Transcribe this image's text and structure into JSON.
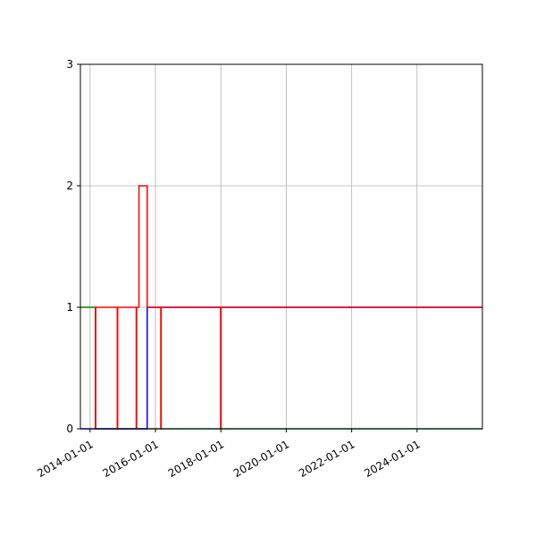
{
  "chart_data": {
    "type": "line",
    "step": "post",
    "title": "",
    "xlabel": "",
    "ylabel": "",
    "x_axis_type": "date",
    "xlim": [
      "2013-09-15",
      "2025-12-31"
    ],
    "ylim": [
      0,
      3
    ],
    "grid": true,
    "x_ticks": [
      "2014-01-01",
      "2016-01-01",
      "2018-01-01",
      "2020-01-01",
      "2022-01-01",
      "2024-01-01"
    ],
    "x_tick_labels": [
      "2014-01-01",
      "2016-01-01",
      "2018-01-01",
      "2020-01-01",
      "2022-01-01",
      "2024-01-01"
    ],
    "y_ticks": [
      0,
      1,
      2,
      3
    ],
    "y_tick_labels": [
      "0",
      "1",
      "2",
      "3"
    ],
    "series": [
      {
        "color": "#008000",
        "x": [
          "2013-09-15",
          "2014-03-01",
          "2025-12-31"
        ],
        "y": [
          1,
          0,
          0
        ]
      },
      {
        "color": "#0000ff",
        "x": [
          "2013-09-15",
          "2015-09-01",
          "2015-10-01",
          "2025-12-31"
        ],
        "y": [
          0,
          0,
          1,
          1
        ]
      },
      {
        "color": "#ff0000",
        "x": [
          "2014-03-01",
          "2014-03-05",
          "2014-11-01",
          "2014-11-05",
          "2015-06-01",
          "2015-06-05",
          "2015-07-01",
          "2015-10-01",
          "2016-03-01",
          "2016-03-05",
          "2017-12-29",
          "2018-01-03",
          "2025-12-31"
        ],
        "y": [
          0,
          1,
          0,
          1,
          0,
          1,
          2,
          1,
          0,
          1,
          0,
          1,
          1
        ]
      }
    ]
  }
}
